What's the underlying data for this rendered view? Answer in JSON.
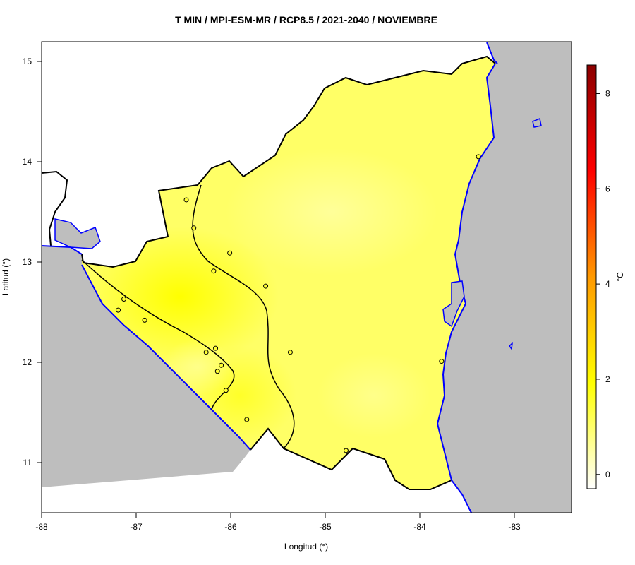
{
  "title": "T MIN / MPI-ESM-MR / RCP8.5 / 2021-2040 / NOVIEMBRE",
  "axes": {
    "xlabel": "Longitud (°)",
    "ylabel": "Latitud (°)",
    "x_ticks": [
      "-88",
      "-87",
      "-86",
      "-85",
      "-84",
      "-83"
    ],
    "y_ticks": [
      "15",
      "14",
      "13",
      "12",
      "11"
    ]
  },
  "colorbar": {
    "unit": "°C",
    "ticks": [
      "8",
      "6",
      "4",
      "2",
      "0"
    ],
    "range": [
      -0.3,
      8.6
    ],
    "colors": [
      "#ffffff",
      "#ffff00",
      "#ff9900",
      "#ff0000",
      "#8b0000"
    ]
  },
  "map": {
    "land_color": "#ffff66",
    "sea_color": "#bebebe",
    "coast_color": "#0000ff",
    "lon_range": [
      -88,
      -82.4
    ],
    "lat_range": [
      10.5,
      15.2
    ]
  },
  "stations": [
    {
      "lon": -86.47,
      "lat": 13.62
    },
    {
      "lon": -86.39,
      "lat": 13.34
    },
    {
      "lon": -86.01,
      "lat": 13.09
    },
    {
      "lon": -86.18,
      "lat": 12.91
    },
    {
      "lon": -85.63,
      "lat": 12.76
    },
    {
      "lon": -87.13,
      "lat": 12.63
    },
    {
      "lon": -87.19,
      "lat": 12.52
    },
    {
      "lon": -86.91,
      "lat": 12.42
    },
    {
      "lon": -86.26,
      "lat": 12.1
    },
    {
      "lon": -86.16,
      "lat": 12.14
    },
    {
      "lon": -86.1,
      "lat": 11.97
    },
    {
      "lon": -86.14,
      "lat": 11.91
    },
    {
      "lon": -86.05,
      "lat": 11.72
    },
    {
      "lon": -85.83,
      "lat": 11.43
    },
    {
      "lon": -85.37,
      "lat": 12.1
    },
    {
      "lon": -84.78,
      "lat": 11.12
    },
    {
      "lon": -83.77,
      "lat": 12.01
    },
    {
      "lon": -83.38,
      "lat": 14.05
    }
  ]
}
